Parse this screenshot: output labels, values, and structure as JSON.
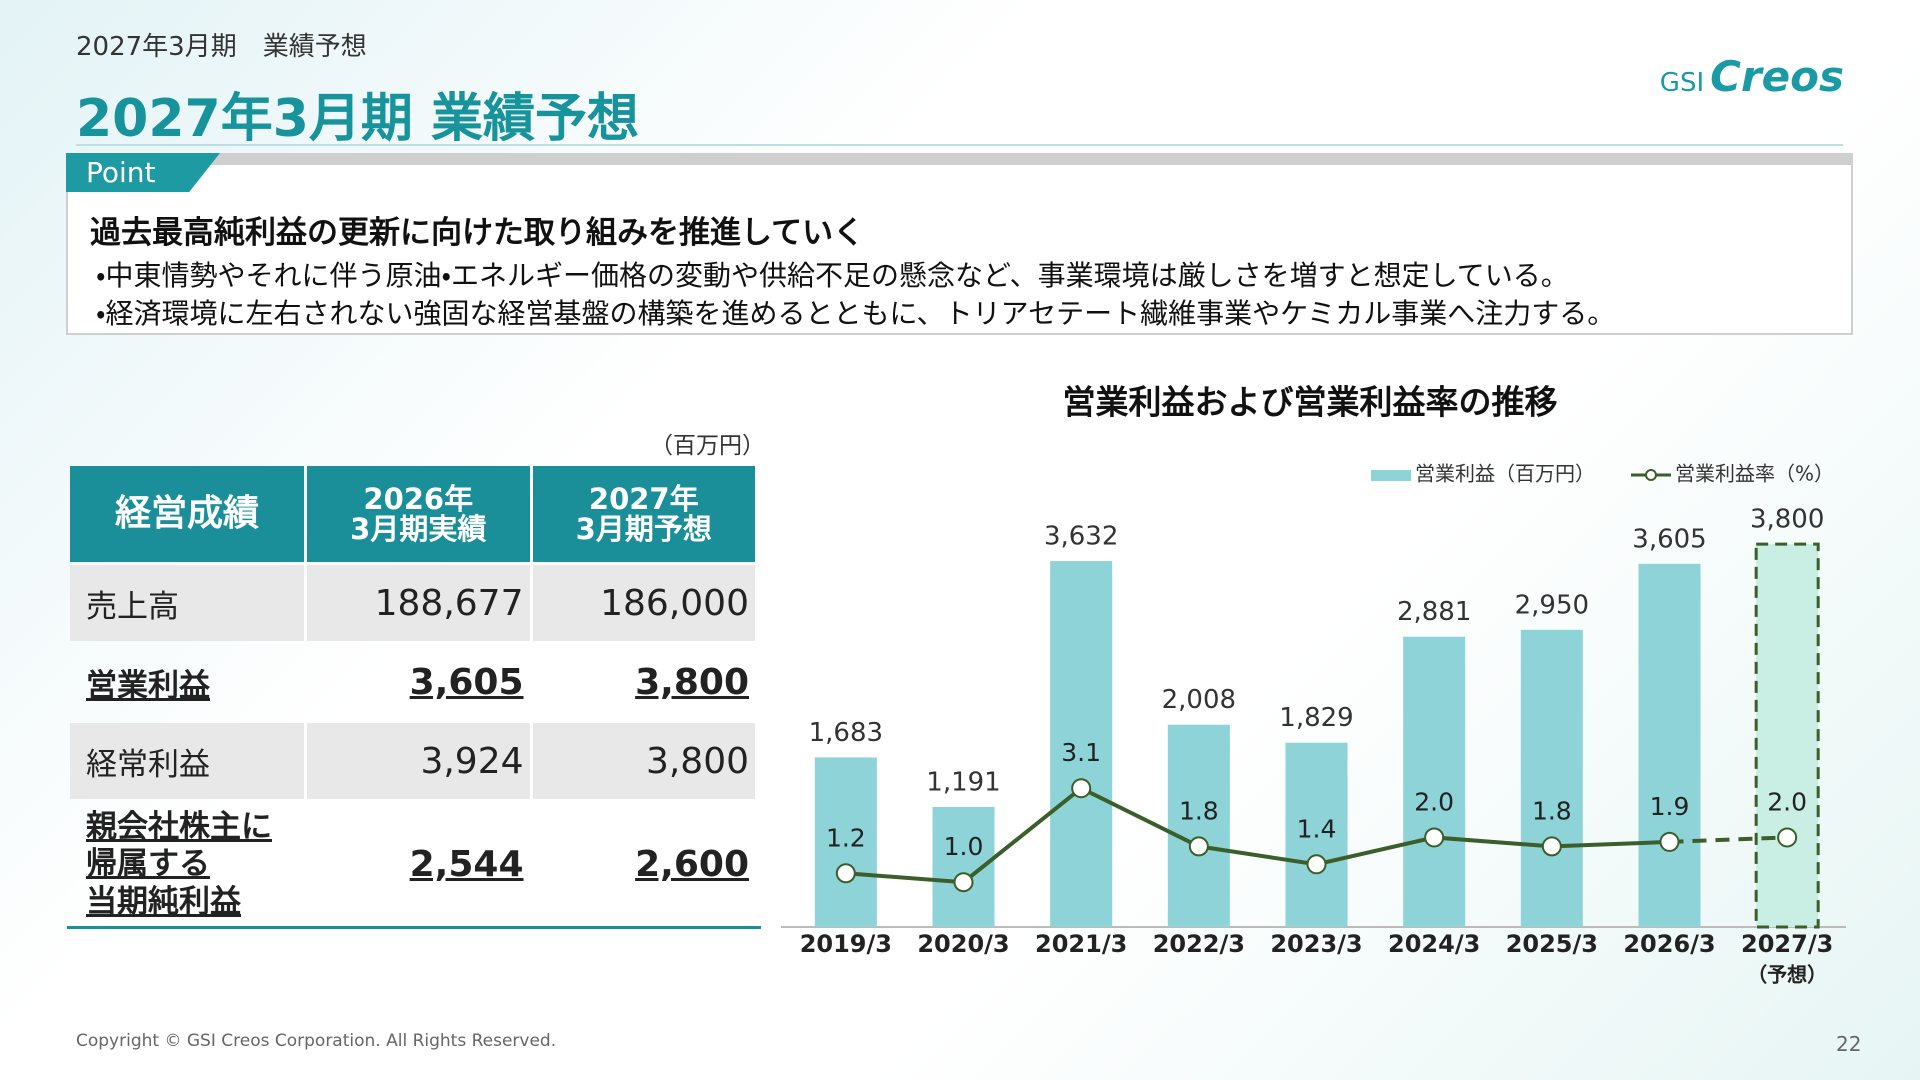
{
  "header": {
    "subtitle": "2027年3月期　業績予想",
    "title": "2027年3月期 業績予想",
    "logo_small": "GSI",
    "logo_big": "Creos"
  },
  "point": {
    "tag": "Point",
    "heading": "過去最高純利益の更新に向けた取り組みを推進していく",
    "bullets": [
      "・中東情勢やそれに伴う原油・エネルギー価格の変動や供給不足の懸念など、事業環境は厳しさを増すと想定している。",
      "・経済環境に左右されない強固な経営基盤の構築を進めるとともに、トリアセテート繊維事業やケミカル事業へ注力する。"
    ]
  },
  "table": {
    "unit": "（百万円）",
    "header": [
      "経営成績",
      "2026年\n3月期実績",
      "2027年\n3月期予想"
    ],
    "rows": [
      [
        "売上高",
        "188,677",
        "186,000"
      ],
      [
        "営業利益",
        "3,605",
        "3,800"
      ],
      [
        "経常利益",
        "3,924",
        "3,800"
      ],
      [
        "親会社株主に\n帰属する\n当期純利益",
        "2,544",
        "2,600"
      ]
    ]
  },
  "chart_data": {
    "type": "bar_line",
    "title": "営業利益および営業利益率の推移",
    "categories": [
      "2019/3",
      "2020/3",
      "2021/3",
      "2022/3",
      "2023/3",
      "2024/3",
      "2025/3",
      "2026/3",
      "2027/3"
    ],
    "category_notes": [
      null,
      null,
      null,
      null,
      null,
      null,
      null,
      null,
      "（予想）"
    ],
    "series": [
      {
        "name": "営業利益（百万円）",
        "type": "bar",
        "color": "#8dd3d8",
        "values": [
          1683,
          1191,
          3632,
          2008,
          1829,
          2881,
          2950,
          3605,
          3800
        ],
        "value_labels": [
          "1,683",
          "1,191",
          "3,632",
          "2,008",
          "1,829",
          "2,881",
          "2,950",
          "3,605",
          "3,800"
        ]
      },
      {
        "name": "営業利益率（%）",
        "type": "line",
        "axis": "y2",
        "color": "#3b5e2b",
        "values": [
          1.2,
          1.0,
          3.1,
          1.8,
          1.4,
          2.0,
          1.8,
          1.9,
          2.0
        ],
        "value_labels": [
          "1.2",
          "1.0",
          "3.1",
          "1.8",
          "1.4",
          "2.0",
          "1.8",
          "1.9",
          "2.0"
        ]
      }
    ],
    "forecast_color": "#c9efe4",
    "ylim": [
      0,
      4000
    ],
    "y2lim": [
      0,
      9
    ],
    "legend": "top-right"
  },
  "footer": {
    "copyright": "Copyright © GSI Creos Corporation. All Rights Reserved.",
    "page": "22"
  }
}
